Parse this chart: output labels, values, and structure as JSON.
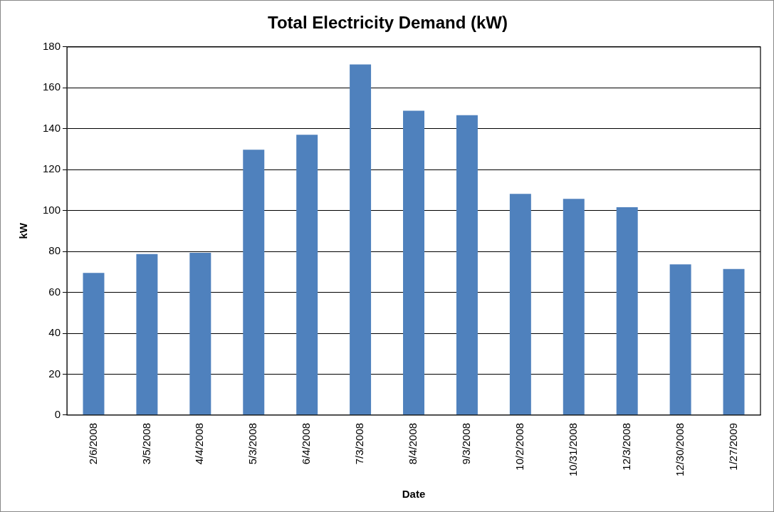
{
  "chart_data": {
    "type": "bar",
    "title": "Total Electricity Demand (kW)",
    "xlabel": "Date",
    "ylabel": "kW",
    "categories": [
      "2/6/2008",
      "3/5/2008",
      "4/4/2008",
      "5/3/2008",
      "6/4/2008",
      "7/3/2008",
      "8/4/2008",
      "9/3/2008",
      "10/2/2008",
      "10/31/2008",
      "12/3/2008",
      "12/30/2008",
      "1/27/2009"
    ],
    "values": [
      69.5,
      78.7,
      79.3,
      129.7,
      137.0,
      171.4,
      148.8,
      146.6,
      108.1,
      105.7,
      101.6,
      73.7,
      71.4
    ],
    "color": "#4f81bd",
    "ylim": [
      0,
      180
    ],
    "yticks": [
      0,
      20,
      40,
      60,
      80,
      100,
      120,
      140,
      160,
      180
    ],
    "grid": "y"
  }
}
